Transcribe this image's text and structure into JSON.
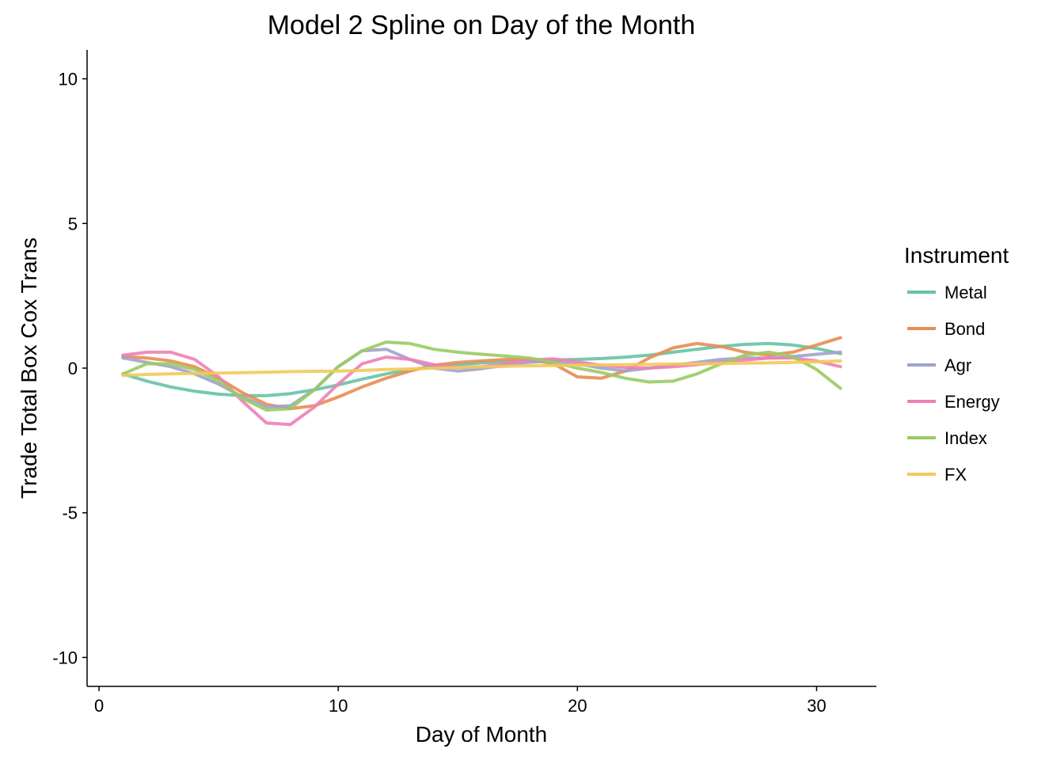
{
  "chart_data": {
    "type": "line",
    "title": "Model 2 Spline on Day of the Month",
    "xlabel": "Day of Month",
    "ylabel": "Trade Total Box Cox Trans",
    "xlim": [
      -0.5,
      32.5
    ],
    "ylim": [
      -11,
      11
    ],
    "xticks": [
      0,
      10,
      20,
      30
    ],
    "xtick_labels": [
      "0",
      "10",
      "20",
      "30"
    ],
    "yticks": [
      -10,
      -5,
      0,
      5,
      10
    ],
    "ytick_labels": [
      "-10",
      "-5",
      "0",
      "5",
      "10"
    ],
    "grid": false,
    "legend": {
      "title": "Instrument",
      "position": "right"
    },
    "x": [
      1,
      2,
      3,
      4,
      5,
      6,
      7,
      8,
      9,
      10,
      11,
      12,
      13,
      14,
      15,
      16,
      17,
      18,
      19,
      20,
      21,
      22,
      23,
      24,
      25,
      26,
      27,
      28,
      29,
      30,
      31
    ],
    "series": [
      {
        "name": "Metal",
        "color": "#66c2a5",
        "values": [
          -0.2,
          -0.45,
          -0.65,
          -0.8,
          -0.9,
          -0.95,
          -0.95,
          -0.88,
          -0.75,
          -0.58,
          -0.38,
          -0.2,
          -0.05,
          0.05,
          0.12,
          0.18,
          0.22,
          0.25,
          0.28,
          0.3,
          0.33,
          0.38,
          0.45,
          0.55,
          0.65,
          0.75,
          0.82,
          0.85,
          0.8,
          0.68,
          0.5
        ]
      },
      {
        "name": "Bond",
        "color": "#e78d53",
        "values": [
          0.4,
          0.35,
          0.25,
          0.05,
          -0.35,
          -0.85,
          -1.25,
          -1.4,
          -1.3,
          -1.0,
          -0.65,
          -0.35,
          -0.1,
          0.1,
          0.2,
          0.25,
          0.3,
          0.3,
          0.15,
          -0.3,
          -0.35,
          -0.1,
          0.35,
          0.7,
          0.85,
          0.75,
          0.55,
          0.45,
          0.55,
          0.8,
          1.05
        ]
      },
      {
        "name": "Agr",
        "color": "#9ea3cb",
        "values": [
          0.35,
          0.2,
          0.05,
          -0.2,
          -0.55,
          -1.0,
          -1.35,
          -1.3,
          -0.75,
          0.05,
          0.6,
          0.65,
          0.3,
          0.0,
          -0.1,
          -0.02,
          0.1,
          0.2,
          0.25,
          0.15,
          0.0,
          -0.1,
          0.0,
          0.1,
          0.2,
          0.3,
          0.35,
          0.35,
          0.4,
          0.48,
          0.55
        ]
      },
      {
        "name": "Energy",
        "color": "#ef7fb7",
        "values": [
          0.45,
          0.55,
          0.55,
          0.3,
          -0.3,
          -1.15,
          -1.9,
          -1.95,
          -1.35,
          -0.55,
          0.15,
          0.38,
          0.3,
          0.12,
          0.02,
          0.05,
          0.15,
          0.28,
          0.32,
          0.22,
          0.1,
          0.02,
          0.0,
          0.05,
          0.12,
          0.2,
          0.28,
          0.35,
          0.35,
          0.25,
          0.05
        ]
      },
      {
        "name": "Index",
        "color": "#9acb63",
        "values": [
          -0.2,
          0.15,
          0.15,
          -0.05,
          -0.45,
          -1.05,
          -1.45,
          -1.4,
          -0.75,
          0.05,
          0.6,
          0.9,
          0.85,
          0.65,
          0.55,
          0.48,
          0.42,
          0.35,
          0.2,
          0.0,
          -0.15,
          -0.35,
          -0.48,
          -0.45,
          -0.2,
          0.15,
          0.45,
          0.55,
          0.4,
          -0.05,
          -0.7
        ]
      },
      {
        "name": "FX",
        "color": "#f2ca5a",
        "values": [
          -0.25,
          -0.22,
          -0.2,
          -0.18,
          -0.17,
          -0.16,
          -0.14,
          -0.12,
          -0.11,
          -0.1,
          -0.08,
          -0.05,
          -0.03,
          0.0,
          0.02,
          0.04,
          0.06,
          0.08,
          0.09,
          0.1,
          0.11,
          0.12,
          0.13,
          0.14,
          0.15,
          0.16,
          0.17,
          0.18,
          0.2,
          0.22,
          0.25
        ]
      }
    ]
  }
}
